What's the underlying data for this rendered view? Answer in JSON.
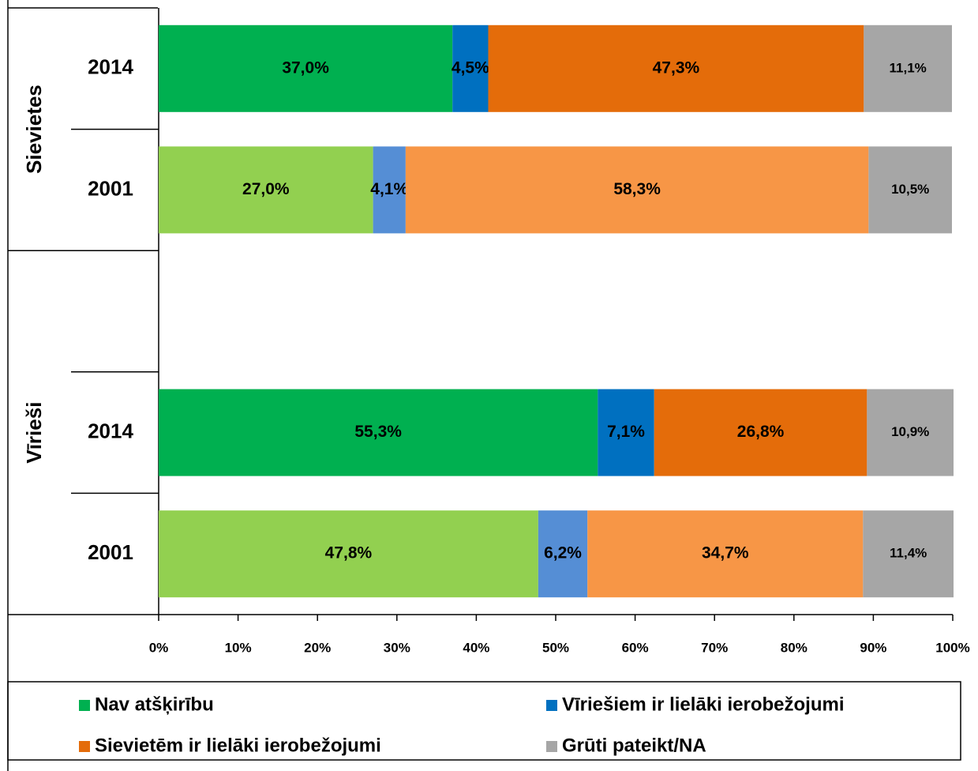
{
  "chart_data": {
    "type": "stacked-bar-horizontal",
    "categories": [
      "2014",
      "2001",
      null,
      "2014",
      "2001"
    ],
    "groups": [
      {
        "name": "Sievietes",
        "span": 2
      },
      {
        "name": "Vīrieši",
        "span": 3
      }
    ],
    "series": [
      {
        "name": "Nav atšķirību",
        "color": "#00b050",
        "colors": [
          "#00b050",
          "#92d050",
          null,
          "#00b050",
          "#92d050"
        ],
        "values": [
          37.0,
          27.0,
          null,
          55.3,
          47.8
        ],
        "value_labels": [
          "37,0%",
          "27,0%",
          null,
          "55,3%",
          "47,8%"
        ]
      },
      {
        "name": "Vīriešiem ir lielāki ierobežojumi",
        "color": "#0070c0",
        "colors": [
          "#0070c0",
          "#558ed5",
          null,
          "#0070c0",
          "#558ed5"
        ],
        "values": [
          4.5,
          4.1,
          null,
          7.1,
          6.2
        ],
        "value_labels": [
          "4,5%",
          "4,1%",
          null,
          "7,1%",
          "6,2%"
        ]
      },
      {
        "name": "Sievietēm ir lielāki ierobežojumi",
        "color": "#e46c0a",
        "colors": [
          "#e46c0a",
          "#f79646",
          null,
          "#e46c0a",
          "#f79646"
        ],
        "values": [
          47.3,
          58.3,
          null,
          26.8,
          34.7
        ],
        "value_labels": [
          "47,3%",
          "58,3%",
          null,
          "26,8%",
          "34,7%"
        ]
      },
      {
        "name": "Grūti pateikt/NA",
        "color": "#a6a6a6",
        "colors": [
          "#a6a6a6",
          "#a6a6a6",
          null,
          "#a6a6a6",
          "#a6a6a6"
        ],
        "values": [
          11.1,
          10.5,
          null,
          10.9,
          11.4
        ],
        "value_labels": [
          "11,1%",
          "10,5%",
          null,
          "10,9%",
          "11,4%"
        ]
      }
    ],
    "xlim": [
      0,
      100
    ],
    "xticks": [
      {
        "value": 0,
        "label": "0%"
      },
      {
        "value": 10,
        "label": "10%"
      },
      {
        "value": 20,
        "label": "20%"
      },
      {
        "value": 30,
        "label": "30%"
      },
      {
        "value": 40,
        "label": "40%"
      },
      {
        "value": 50,
        "label": "50%"
      },
      {
        "value": 60,
        "label": "60%"
      },
      {
        "value": 70,
        "label": "70%"
      },
      {
        "value": 80,
        "label": "80%"
      },
      {
        "value": 90,
        "label": "90%"
      },
      {
        "value": 100,
        "label": "100%"
      }
    ],
    "legend": "bottom"
  }
}
